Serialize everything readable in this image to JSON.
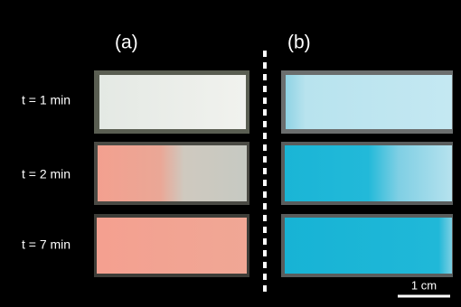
{
  "panels": [
    {
      "label": "(a)"
    },
    {
      "label": "(b)"
    }
  ],
  "rows": [
    {
      "label": "t = 1 min"
    },
    {
      "label": "t = 2 min"
    },
    {
      "label": "t = 7 min"
    }
  ],
  "scale_bar": {
    "label": "1 cm"
  }
}
